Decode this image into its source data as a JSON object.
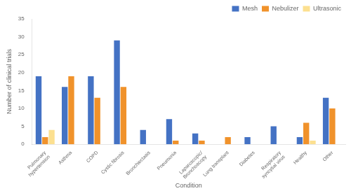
{
  "chart_data": {
    "type": "bar",
    "xlabel": "Condition",
    "ylabel": "Number of clinical trials",
    "categories": [
      "Pulmonary\nhypertension",
      "Asthma",
      "COPD",
      "Cystic fibrosis",
      "Bronchiectasis",
      "Pneumonia",
      "Laparoscopic/\nBronchoscopy",
      "Lung transplant",
      "Diabetes",
      "Respiratory\nsyncytial virus",
      "Healthy",
      "Other"
    ],
    "series": [
      {
        "name": "Mesh",
        "color": "#4472c4",
        "values": [
          19,
          16,
          19,
          29,
          4,
          7,
          3,
          0,
          2,
          5,
          2,
          13
        ]
      },
      {
        "name": "Nebulizer",
        "color": "#f0922b",
        "values": [
          2,
          19,
          13,
          16,
          0,
          1,
          1,
          2,
          0,
          0,
          6,
          10
        ]
      },
      {
        "name": "Ultrasonic",
        "color": "#fce090",
        "values": [
          4,
          0,
          0,
          0,
          0,
          0,
          0,
          0,
          0,
          0,
          1,
          0
        ]
      }
    ],
    "ylim": [
      0,
      35
    ],
    "yticks": [
      0,
      5,
      10,
      15,
      20,
      25,
      30,
      35
    ],
    "grid": false,
    "legend": "upper right"
  }
}
